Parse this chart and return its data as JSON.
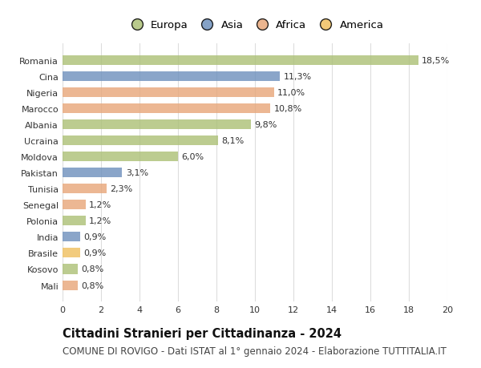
{
  "categories": [
    "Romania",
    "Cina",
    "Nigeria",
    "Marocco",
    "Albania",
    "Ucraina",
    "Moldova",
    "Pakistan",
    "Tunisia",
    "Senegal",
    "Polonia",
    "India",
    "Brasile",
    "Kosovo",
    "Mali"
  ],
  "values": [
    18.5,
    11.3,
    11.0,
    10.8,
    9.8,
    8.1,
    6.0,
    3.1,
    2.3,
    1.2,
    1.2,
    0.9,
    0.9,
    0.8,
    0.8
  ],
  "labels": [
    "18,5%",
    "11,3%",
    "11,0%",
    "10,8%",
    "9,8%",
    "8,1%",
    "6,0%",
    "3,1%",
    "2,3%",
    "1,2%",
    "1,2%",
    "0,9%",
    "0,9%",
    "0,8%",
    "0,8%"
  ],
  "continents": [
    "Europa",
    "Asia",
    "Africa",
    "Africa",
    "Europa",
    "Europa",
    "Europa",
    "Asia",
    "Africa",
    "Africa",
    "Europa",
    "Asia",
    "America",
    "Europa",
    "Africa"
  ],
  "continent_colors": {
    "Europa": "#adc178",
    "Asia": "#7092be",
    "Africa": "#e8a87c",
    "America": "#f0c060"
  },
  "legend_order": [
    "Europa",
    "Asia",
    "Africa",
    "America"
  ],
  "xlim": [
    0,
    20
  ],
  "xticks": [
    0,
    2,
    4,
    6,
    8,
    10,
    12,
    14,
    16,
    18,
    20
  ],
  "title": "Cittadini Stranieri per Cittadinanza - 2024",
  "subtitle": "COMUNE DI ROVIGO - Dati ISTAT al 1° gennaio 2024 - Elaborazione TUTTITALIA.IT",
  "background_color": "#ffffff",
  "grid_color": "#dddddd",
  "bar_height": 0.6,
  "title_fontsize": 10.5,
  "subtitle_fontsize": 8.5,
  "label_fontsize": 8,
  "tick_fontsize": 8,
  "legend_fontsize": 9.5
}
